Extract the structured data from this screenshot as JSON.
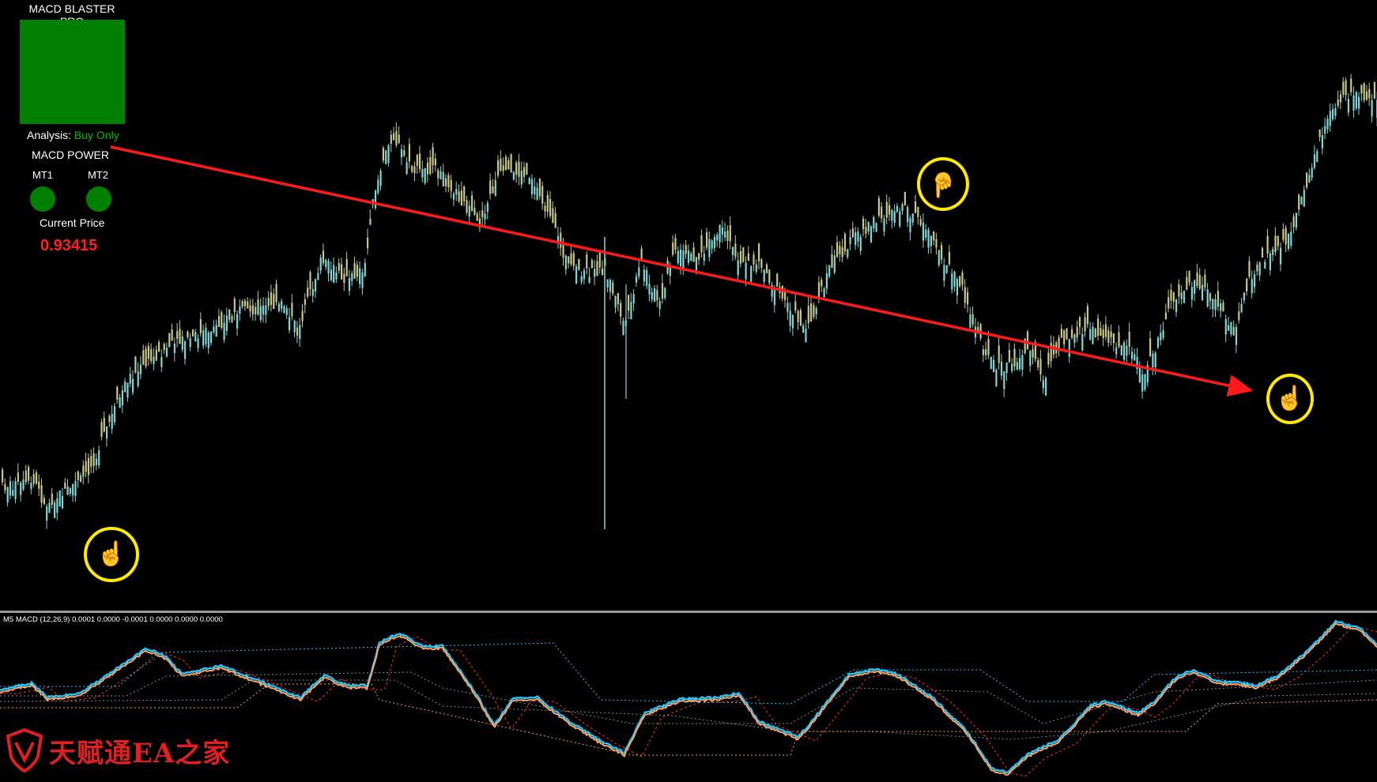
{
  "panel": {
    "title": "MACD BLASTER PRO",
    "analysis_label": "Analysis:",
    "analysis_value": "Buy Only",
    "power_label": "MACD POWER",
    "mt1_label": "MT1",
    "mt2_label": "MT2",
    "price_label": "Current Price",
    "price_value": "0.93415"
  },
  "signals": [
    {
      "type": "buy",
      "icon": "pointing-up-hand-icon",
      "color": "#00aa00"
    },
    {
      "type": "sell",
      "icon": "pointing-down-hand-icon",
      "color": "#ff2020"
    },
    {
      "type": "buy",
      "icon": "pointing-up-hand-icon",
      "color": "#00aa00"
    }
  ],
  "indicator": {
    "label": "M5 MACD (12,26,9) 0.0001 0.0000 -0.0001 0.0000 0.0000 0.0000"
  },
  "watermark": {
    "text": "天赋通EA之家"
  },
  "colors": {
    "background": "#000000",
    "bull_candle": "#c8c88a",
    "bear_candle": "#7fd6d6",
    "trendline": "#ff1a1a",
    "signal_box": "#008000",
    "macd_main": "#ffa060",
    "macd_blue": "#1ec8ff",
    "highlight_circle": "#ffea00"
  }
}
